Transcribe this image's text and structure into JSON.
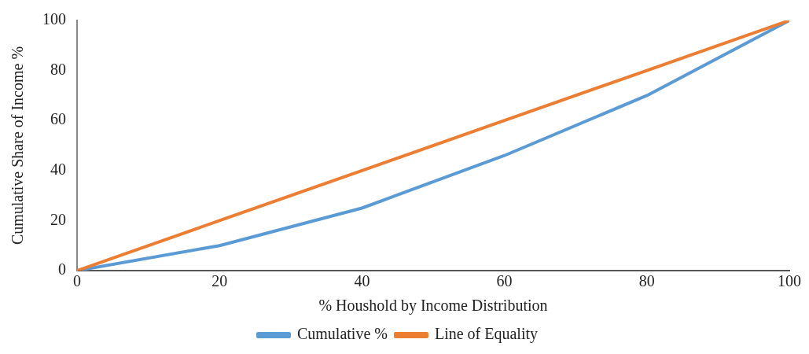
{
  "chart_data": {
    "type": "line",
    "xlabel": "% Houshold by Income Distribution",
    "ylabel": "Cumulative Share of Income %",
    "x": [
      0,
      20,
      40,
      60,
      80,
      100
    ],
    "series": [
      {
        "name": "Cumulative %",
        "color": "#5b9bd5",
        "values": [
          0,
          10,
          25,
          46,
          70,
          100
        ]
      },
      {
        "name": "Line of Equality",
        "color": "#ed7d31",
        "values": [
          0,
          20,
          40,
          60,
          80,
          100
        ]
      }
    ],
    "xlim": [
      0,
      100
    ],
    "xticks": [
      0,
      20,
      40,
      60,
      80,
      100
    ],
    "ylim": [
      0,
      100
    ],
    "yticks": [
      0,
      20,
      40,
      60,
      80,
      100
    ],
    "grid": false,
    "legend": "bottom",
    "marker": "none",
    "line_style": "solid"
  }
}
